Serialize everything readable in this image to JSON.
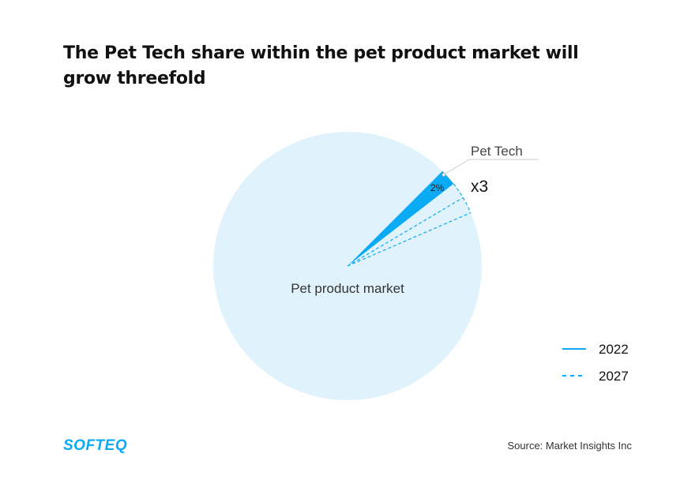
{
  "title": "The Pet Tech share within the pet product market will grow threefold",
  "chart_data": {
    "type": "pie",
    "title": "The Pet Tech share within the pet product market will grow threefold",
    "categories": [
      "Pet Tech",
      "Pet product market"
    ],
    "series": [
      {
        "name": "2022",
        "values": [
          2,
          98
        ],
        "style": "solid"
      },
      {
        "name": "2027",
        "values": [
          6,
          94
        ],
        "style": "dashed"
      }
    ],
    "data_labels": {
      "pet_tech_2022": "2%",
      "growth": "x3"
    },
    "slice_labels": {
      "pet_tech": "Pet Tech",
      "market": "Pet product market"
    },
    "legend": {
      "position": "right",
      "entries": [
        "2022",
        "2027"
      ]
    },
    "colors": {
      "market": "#e0f3fc",
      "pet_tech": "#0aaaf5",
      "text": "#333333"
    }
  },
  "source": "Source: Market Insights Inc",
  "logo": "SOFTEQ"
}
